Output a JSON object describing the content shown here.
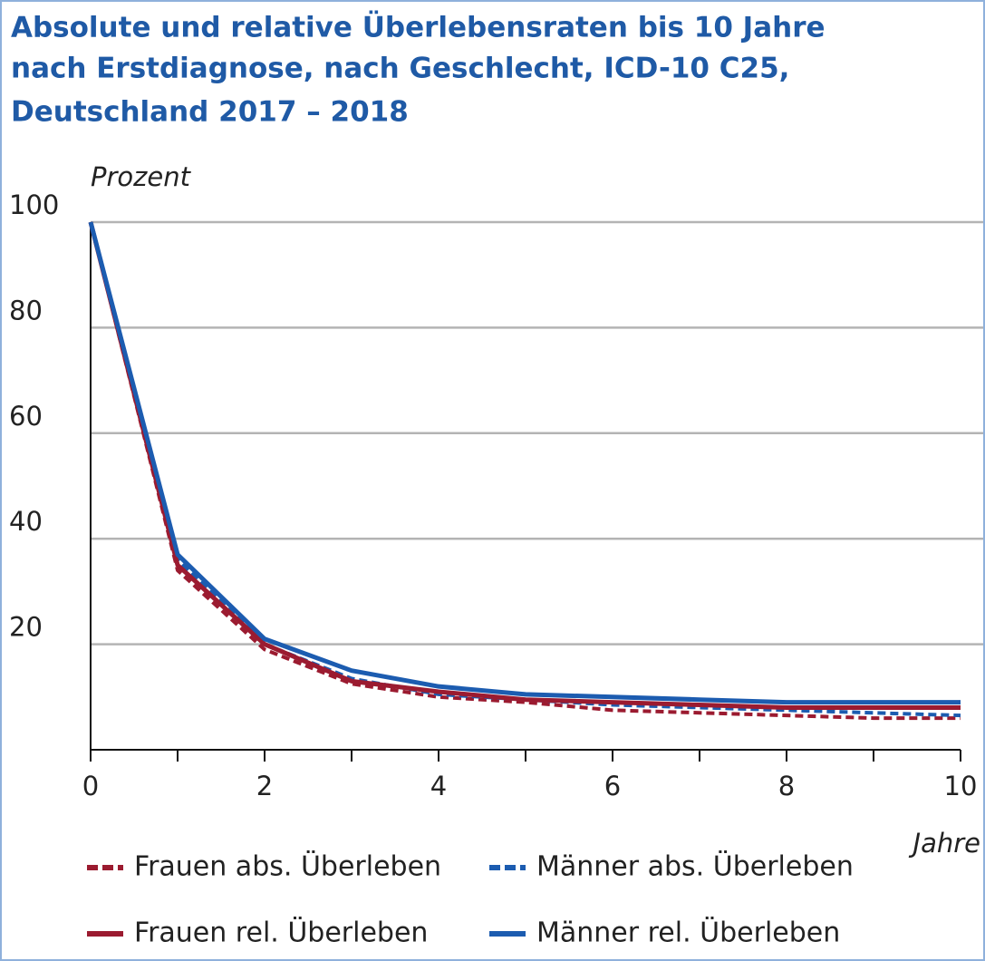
{
  "chart_data": {
    "type": "line",
    "title": [
      "Absolute und relative Überlebensraten bis 10 Jahre",
      "nach Erstdiagnose, nach Geschlecht, ICD-10 C25,",
      "Deutschland 2017 – 2018"
    ],
    "y_label": "Prozent",
    "x_label": "Jahre",
    "x": [
      0,
      1,
      2,
      3,
      4,
      5,
      6,
      7,
      8,
      9,
      10
    ],
    "xlim": [
      0,
      10
    ],
    "xticks": [
      0,
      2,
      4,
      6,
      8,
      10
    ],
    "ylim": [
      0,
      100
    ],
    "yticks": [
      20,
      40,
      60,
      80,
      100
    ],
    "grid": true,
    "series": [
      {
        "name": "Frauen abs. Überleben",
        "color": "#9b1b30",
        "dashed": true,
        "values": [
          100,
          34,
          19,
          12.5,
          10,
          9,
          7.5,
          7,
          6.5,
          6,
          6
        ]
      },
      {
        "name": "Männer abs. Überleben",
        "color": "#1c5cb0",
        "dashed": true,
        "values": [
          100,
          36,
          20,
          13.5,
          10.5,
          9.5,
          8.5,
          8,
          7.5,
          7,
          6.5
        ]
      },
      {
        "name": "Frauen rel. Überleben",
        "color": "#9b1b30",
        "dashed": false,
        "values": [
          100,
          35,
          20,
          13,
          11,
          9.5,
          9,
          8.5,
          8,
          8,
          8
        ]
      },
      {
        "name": "Männer rel. Überleben",
        "color": "#1c5cb0",
        "dashed": false,
        "values": [
          100,
          37,
          21,
          15,
          12,
          10.5,
          10,
          9.5,
          9,
          9,
          9
        ]
      }
    ]
  }
}
